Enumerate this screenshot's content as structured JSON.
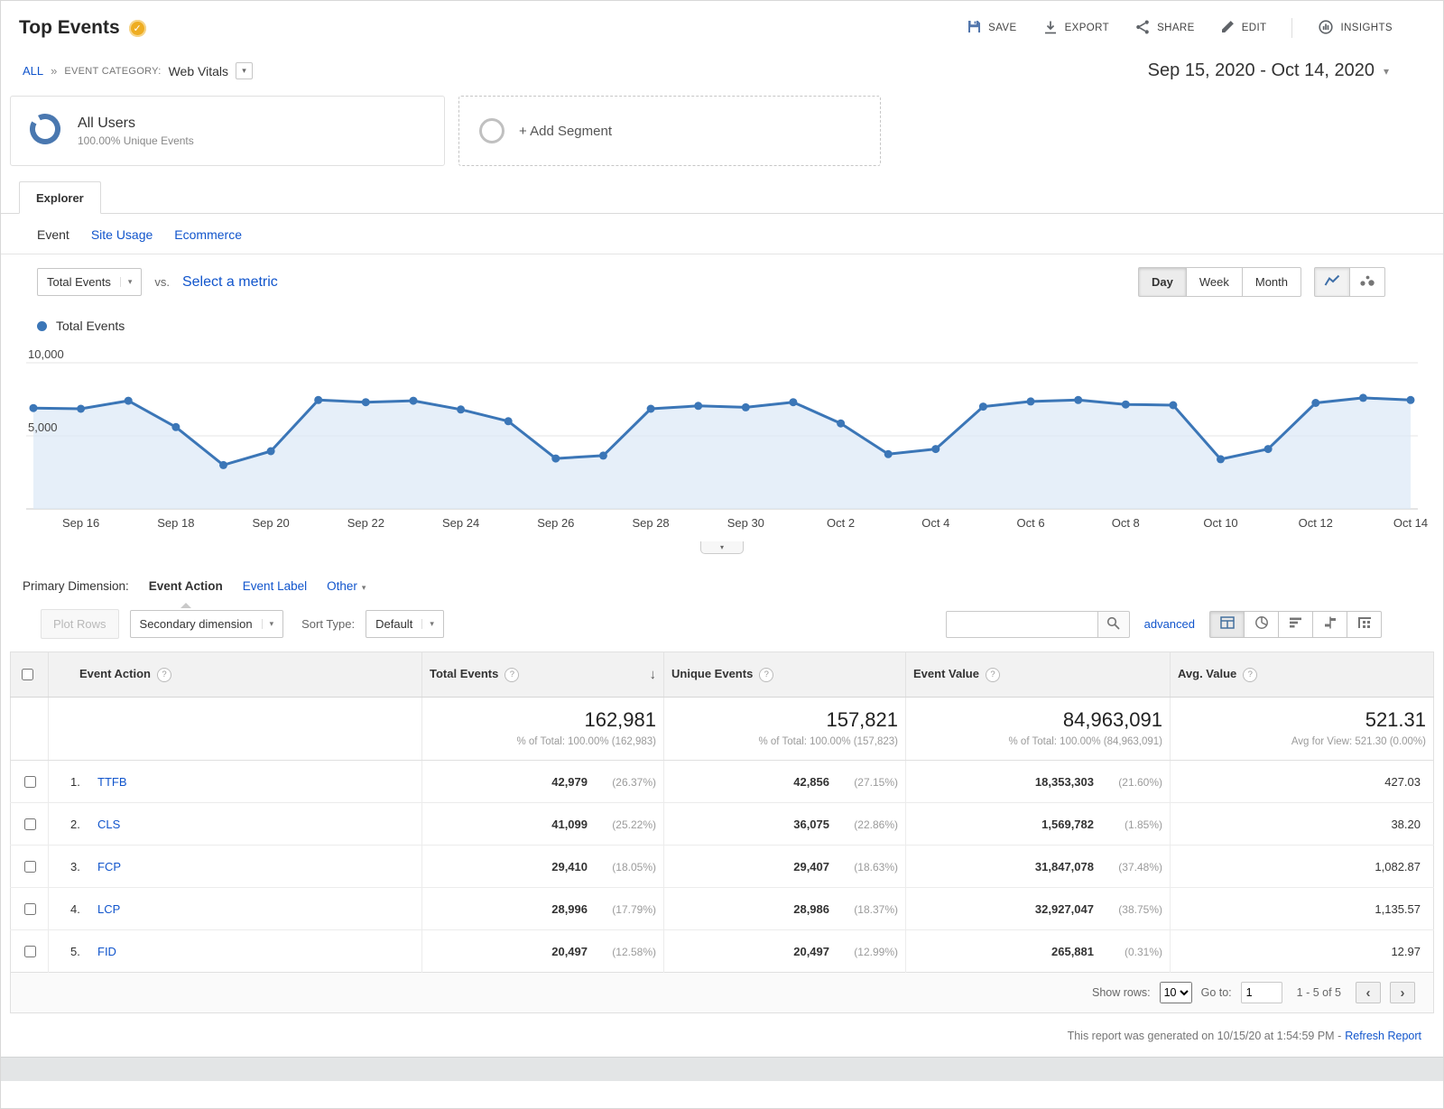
{
  "header": {
    "title": "Top Events",
    "actions": {
      "save": "SAVE",
      "export": "EXPORT",
      "share": "SHARE",
      "edit": "EDIT",
      "insights": "INSIGHTS"
    }
  },
  "breadcrumb": {
    "all": "ALL",
    "separator": "»",
    "category_label": "EVENT CATEGORY:",
    "category_value": "Web Vitals"
  },
  "date_range": "Sep 15, 2020 - Oct 14, 2020",
  "segments": {
    "all_users_title": "All Users",
    "all_users_subtitle": "100.00% Unique Events",
    "add_segment": "+ Add Segment"
  },
  "explorer_tab": "Explorer",
  "subtabs": {
    "event": "Event",
    "site_usage": "Site Usage",
    "ecommerce": "Ecommerce"
  },
  "metric_controls": {
    "metric": "Total Events",
    "vs": "vs.",
    "select_metric": "Select a metric",
    "day": "Day",
    "week": "Week",
    "month": "Month"
  },
  "legend_label": "Total Events",
  "chart_data": {
    "type": "line",
    "x": [
      "Sep 15",
      "Sep 16",
      "Sep 17",
      "Sep 18",
      "Sep 19",
      "Sep 20",
      "Sep 21",
      "Sep 22",
      "Sep 23",
      "Sep 24",
      "Sep 25",
      "Sep 26",
      "Sep 27",
      "Sep 28",
      "Sep 29",
      "Sep 30",
      "Oct 1",
      "Oct 2",
      "Oct 3",
      "Oct 4",
      "Oct 5",
      "Oct 6",
      "Oct 7",
      "Oct 8",
      "Oct 9",
      "Oct 10",
      "Oct 11",
      "Oct 12",
      "Oct 13",
      "Oct 14"
    ],
    "series": [
      {
        "name": "Total Events",
        "values": [
          6900,
          6850,
          7400,
          5600,
          3000,
          3950,
          7450,
          7300,
          7400,
          6800,
          6000,
          3450,
          3650,
          6850,
          7050,
          6950,
          7300,
          5850,
          3750,
          4100,
          7000,
          7350,
          7450,
          7150,
          7100,
          3400,
          4100,
          7250,
          7600,
          7450
        ]
      }
    ],
    "tick_labels": [
      "Sep 16",
      "Sep 18",
      "Sep 20",
      "Sep 22",
      "Sep 24",
      "Sep 26",
      "Sep 28",
      "Sep 30",
      "Oct 2",
      "Oct 4",
      "Oct 6",
      "Oct 8",
      "Oct 10",
      "Oct 12",
      "Oct 14"
    ],
    "y_ticks": [
      5000,
      10000
    ],
    "y_tick_labels": [
      "5,000",
      "10,000"
    ],
    "ylim": [
      0,
      10000
    ],
    "grid": true,
    "legend_position": "top-left",
    "line_color": "#3b76b7",
    "fill_color": "#dce8f6"
  },
  "primary_dimension": {
    "label": "Primary Dimension:",
    "event_action": "Event Action",
    "event_label": "Event Label",
    "other": "Other"
  },
  "toolbar": {
    "plot_rows": "Plot Rows",
    "secondary_dimension": "Secondary dimension",
    "sort_type_label": "Sort Type:",
    "sort_type_value": "Default",
    "search_value": "",
    "advanced": "advanced"
  },
  "table": {
    "columns": {
      "event_action": "Event Action",
      "total_events": "Total Events",
      "unique_events": "Unique Events",
      "event_value": "Event Value",
      "avg_value": "Avg. Value"
    },
    "totals": {
      "total_events": "162,981",
      "total_events_sub": "% of Total: 100.00% (162,983)",
      "unique_events": "157,821",
      "unique_events_sub": "% of Total: 100.00% (157,823)",
      "event_value": "84,963,091",
      "event_value_sub": "% of Total: 100.00% (84,963,091)",
      "avg_value": "521.31",
      "avg_value_sub": "Avg for View: 521.30 (0.00%)"
    },
    "rows": [
      {
        "rank": "1.",
        "action": "TTFB",
        "total_events": "42,979",
        "total_events_pct": "(26.37%)",
        "unique_events": "42,856",
        "unique_events_pct": "(27.15%)",
        "event_value": "18,353,303",
        "event_value_pct": "(21.60%)",
        "avg_value": "427.03"
      },
      {
        "rank": "2.",
        "action": "CLS",
        "total_events": "41,099",
        "total_events_pct": "(25.22%)",
        "unique_events": "36,075",
        "unique_events_pct": "(22.86%)",
        "event_value": "1,569,782",
        "event_value_pct": "(1.85%)",
        "avg_value": "38.20"
      },
      {
        "rank": "3.",
        "action": "FCP",
        "total_events": "29,410",
        "total_events_pct": "(18.05%)",
        "unique_events": "29,407",
        "unique_events_pct": "(18.63%)",
        "event_value": "31,847,078",
        "event_value_pct": "(37.48%)",
        "avg_value": "1,082.87"
      },
      {
        "rank": "4.",
        "action": "LCP",
        "total_events": "28,996",
        "total_events_pct": "(17.79%)",
        "unique_events": "28,986",
        "unique_events_pct": "(18.37%)",
        "event_value": "32,927,047",
        "event_value_pct": "(38.75%)",
        "avg_value": "1,135.57"
      },
      {
        "rank": "5.",
        "action": "FID",
        "total_events": "20,497",
        "total_events_pct": "(12.58%)",
        "unique_events": "20,497",
        "unique_events_pct": "(12.99%)",
        "event_value": "265,881",
        "event_value_pct": "(0.31%)",
        "avg_value": "12.97"
      }
    ]
  },
  "pagination": {
    "show_rows_label": "Show rows:",
    "show_rows_value": "10",
    "goto_label": "Go to:",
    "goto_value": "1",
    "range": "1 - 5 of 5"
  },
  "footer_note": {
    "generated": "This report was generated on 10/15/20 at 1:54:59 PM -",
    "refresh_link": "Refresh Report"
  },
  "glyphs": {
    "caret_down": "▾",
    "sort_down": "↓",
    "prev": "‹",
    "next": "›",
    "check": "✓",
    "help": "?"
  },
  "colors": {
    "link": "#1155cc",
    "chart_line": "#3b76b7",
    "chart_fill": "#dce8f6",
    "badge": "#eead22"
  }
}
